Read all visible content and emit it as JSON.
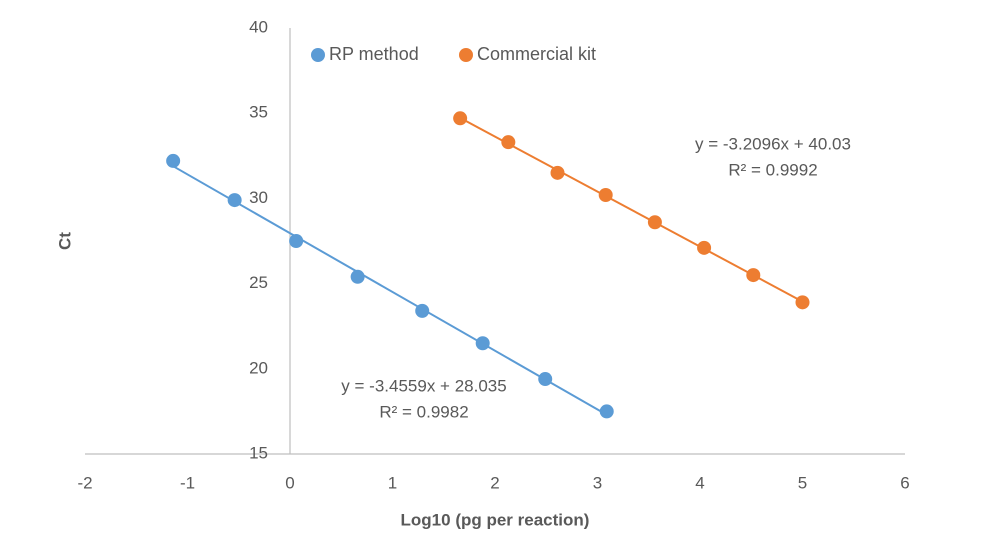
{
  "chart_data": {
    "type": "scatter",
    "x_label": "Log10 (pg per reaction)",
    "y_label": "Ct",
    "xlim": [
      -2,
      6
    ],
    "ylim": [
      15,
      40
    ],
    "xticks": [
      -2,
      -1,
      0,
      1,
      2,
      3,
      4,
      5,
      6
    ],
    "yticks": [
      15,
      20,
      25,
      30,
      35,
      40
    ],
    "grid": false,
    "trendline": true,
    "legend": "top",
    "series": [
      {
        "name": "RP method",
        "color": "#5b9bd5",
        "x": [
          -1.14,
          -0.54,
          0.06,
          0.66,
          1.29,
          1.88,
          2.49,
          3.09
        ],
        "values": [
          32.2,
          29.9,
          27.5,
          25.4,
          23.4,
          21.5,
          19.4,
          17.5
        ],
        "annotations": [
          "y = -3.4559x + 28.035",
          "R² = 0.9982"
        ]
      },
      {
        "name": "Commercial kit",
        "color": "#ed7d31",
        "x": [
          1.66,
          2.13,
          2.61,
          3.08,
          3.56,
          4.04,
          4.52,
          5.0
        ],
        "values": [
          34.7,
          33.3,
          31.5,
          30.2,
          28.6,
          27.1,
          25.5,
          23.9
        ],
        "annotations": [
          "y = -3.2096x + 40.03",
          "R² = 0.9992"
        ]
      }
    ]
  }
}
